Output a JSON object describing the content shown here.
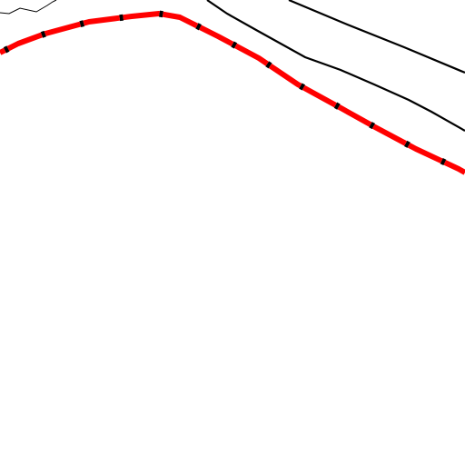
{
  "map": {
    "background": "#ffffff",
    "features": [
      {
        "name": "boundary-line",
        "kind": "administrative-boundary",
        "color": "#000000"
      },
      {
        "name": "contour-line-upper",
        "kind": "line",
        "color": "#000000"
      },
      {
        "name": "contour-line-lower",
        "kind": "line",
        "color": "#000000"
      },
      {
        "name": "highlighted-route",
        "kind": "railway-highlight",
        "color": "#ff0000",
        "tie_color": "#000000"
      }
    ]
  }
}
